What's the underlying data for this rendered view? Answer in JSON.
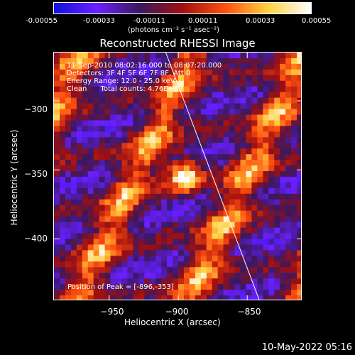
{
  "colorbar": {
    "ticks": [
      "-0.00055",
      "-0.00033",
      "-0.00011",
      "0.00011",
      "0.00033",
      "0.00055"
    ],
    "units": "(photons cm⁻² s⁻¹ asec⁻²)",
    "colors": [
      "#1010e0",
      "#6a20ff",
      "#3a1860",
      "#a01010",
      "#ff5010",
      "#ffd040",
      "#ffffff"
    ]
  },
  "chart_data": {
    "type": "heatmap",
    "title": "Reconstructed RHESSI Image",
    "xlabel": "Heliocentric X (arcsec)",
    "ylabel": "Heliocentric Y (arcsec)",
    "xlim": [
      -990,
      -810
    ],
    "ylim": [
      -445,
      -265
    ],
    "xticks": [
      -950,
      -900,
      -850
    ],
    "yticks": [
      -300,
      -350,
      -400
    ],
    "xtick_labels": [
      "−950",
      "−900",
      "−850"
    ],
    "ytick_labels": [
      "−300",
      "−350",
      "−400"
    ],
    "peak": {
      "x": -896,
      "y": -353
    },
    "limb_line": [
      [
        -909,
        -265
      ],
      [
        -841,
        -445
      ]
    ]
  },
  "info": {
    "line1": "11-Sep-2010 08:02:16.000 to 08:07:20.000",
    "line2": "Detectors: 3F 4F 5F 6F 7F 8F, Att 0",
    "line3": "Energy Range: 12.0 - 25.0 keV",
    "line4": "Clean      Total counts: 4.76E+03",
    "peak_text": "Position of Peak = [-896,-353]"
  },
  "footer": {
    "date": "10-May-2022 05:16"
  }
}
